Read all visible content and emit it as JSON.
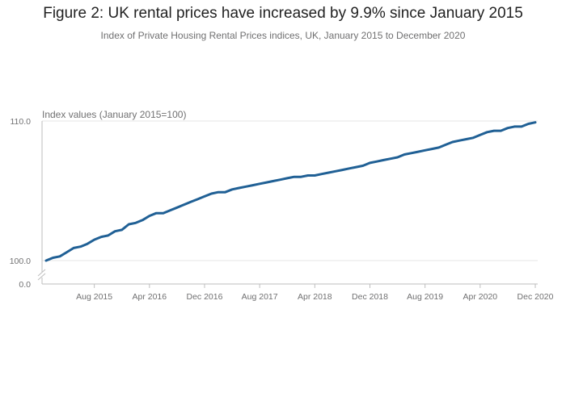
{
  "chart_data": {
    "type": "line",
    "title": "Figure 2: UK rental prices have increased by 9.9% since January 2015",
    "subtitle": "Index of Private Housing Rental Prices indices, UK, January 2015 to December 2020",
    "ylabel": "Index values (January 2015=100)",
    "ylim": [
      100,
      110
    ],
    "axis_break": true,
    "y_ticks": [
      "110.0",
      "100.0",
      "0.0"
    ],
    "x_ticks": [
      "Aug 2015",
      "Apr 2016",
      "Dec 2016",
      "Aug 2017",
      "Apr 2018",
      "Dec 2018",
      "Aug 2019",
      "Apr 2020",
      "Dec 2020"
    ],
    "grid": true,
    "legend": "none",
    "colors": {
      "line": "#206095",
      "grid": "#e6e6e6",
      "axis": "#bebebe"
    },
    "series": [
      {
        "x": [
          "Jan 2015",
          "Feb 2015",
          "Mar 2015",
          "Apr 2015",
          "May 2015",
          "Jun 2015",
          "Jul 2015",
          "Aug 2015",
          "Sep 2015",
          "Oct 2015",
          "Nov 2015",
          "Dec 2015",
          "Jan 2016",
          "Feb 2016",
          "Mar 2016",
          "Apr 2016",
          "May 2016",
          "Jun 2016",
          "Jul 2016",
          "Aug 2016",
          "Sep 2016",
          "Oct 2016",
          "Nov 2016",
          "Dec 2016",
          "Jan 2017",
          "Feb 2017",
          "Mar 2017",
          "Apr 2017",
          "May 2017",
          "Jun 2017",
          "Jul 2017",
          "Aug 2017",
          "Sep 2017",
          "Oct 2017",
          "Nov 2017",
          "Dec 2017",
          "Jan 2018",
          "Feb 2018",
          "Mar 2018",
          "Apr 2018",
          "May 2018",
          "Jun 2018",
          "Jul 2018",
          "Aug 2018",
          "Sep 2018",
          "Oct 2018",
          "Nov 2018",
          "Dec 2018",
          "Jan 2019",
          "Feb 2019",
          "Mar 2019",
          "Apr 2019",
          "May 2019",
          "Jun 2019",
          "Jul 2019",
          "Aug 2019",
          "Sep 2019",
          "Oct 2019",
          "Nov 2019",
          "Dec 2019",
          "Jan 2020",
          "Feb 2020",
          "Mar 2020",
          "Apr 2020",
          "May 2020",
          "Jun 2020",
          "Jul 2020",
          "Aug 2020",
          "Sep 2020",
          "Oct 2020",
          "Nov 2020",
          "Dec 2020"
        ],
        "values": [
          100.0,
          100.2,
          100.3,
          100.6,
          100.9,
          101.0,
          101.2,
          101.5,
          101.7,
          101.8,
          102.1,
          102.2,
          102.6,
          102.7,
          102.9,
          103.2,
          103.4,
          103.4,
          103.6,
          103.8,
          104.0,
          104.2,
          104.4,
          104.6,
          104.8,
          104.9,
          104.9,
          105.1,
          105.2,
          105.3,
          105.4,
          105.5,
          105.6,
          105.7,
          105.8,
          105.9,
          106.0,
          106.0,
          106.1,
          106.1,
          106.2,
          106.3,
          106.4,
          106.5,
          106.6,
          106.7,
          106.8,
          107.0,
          107.1,
          107.2,
          107.3,
          107.4,
          107.6,
          107.7,
          107.8,
          107.9,
          108.0,
          108.1,
          108.3,
          108.5,
          108.6,
          108.7,
          108.8,
          109.0,
          109.2,
          109.3,
          109.3,
          109.5,
          109.6,
          109.6,
          109.8,
          109.9
        ]
      }
    ]
  }
}
